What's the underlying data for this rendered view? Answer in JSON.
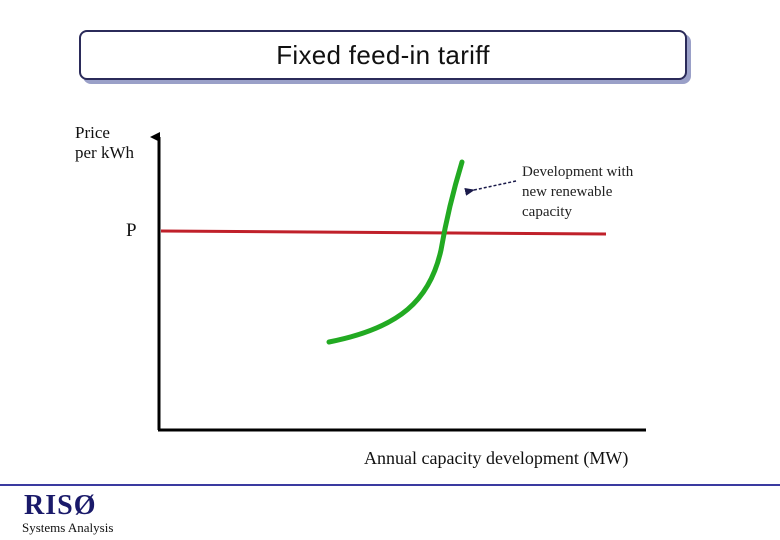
{
  "title": "Fixed feed-in tariff",
  "y_axis_label_line1": "Price",
  "y_axis_label_line2": "per kWh",
  "price_level_label": "P",
  "annotation_line1": "Development with",
  "annotation_line2": "new renewable",
  "annotation_line3": "capacity",
  "x_axis_label": "Annual capacity development (MW)",
  "footer": {
    "logo": "RISØ",
    "subtitle": "Systems Analysis"
  },
  "colors": {
    "price_line": "#c0202a",
    "supply_curve": "#22aa22",
    "axis": "#000000",
    "footer_line": "#3a3aa0",
    "title_shadow": "#9aa0c8"
  },
  "icons": {
    "annotation_arrow": "arrow-left-icon"
  }
}
